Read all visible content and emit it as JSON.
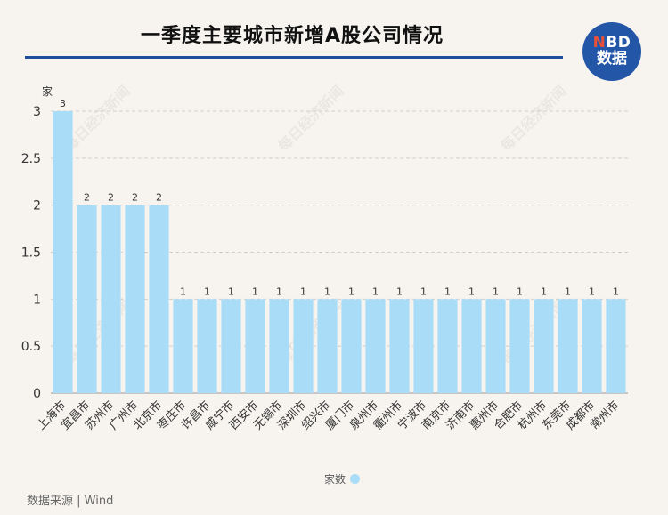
{
  "title": "一季度主要城市新增A股公司情况",
  "logo": {
    "line1_accent": "N",
    "line1_rest": "BD",
    "line2": "数据",
    "color": "#2456a8",
    "accent": "#e8503a"
  },
  "source": "数据来源 | Wind",
  "watermark": "每日经济新闻",
  "chart_data": {
    "type": "bar",
    "unit_label": "家",
    "legend": "家数",
    "bar_color": "#a9dcf7",
    "ylim": [
      0,
      3
    ],
    "yticks": [
      0,
      0.5,
      1,
      1.5,
      2,
      2.5,
      3
    ],
    "grid": "horizontal-dashed",
    "legend_position": "bottom-center",
    "categories": [
      "上海市",
      "宜昌市",
      "苏州市",
      "广州市",
      "北京市",
      "枣庄市",
      "许昌市",
      "咸宁市",
      "西安市",
      "无锡市",
      "深圳市",
      "绍兴市",
      "厦门市",
      "泉州市",
      "衢州市",
      "宁波市",
      "南京市",
      "济南市",
      "惠州市",
      "合肥市",
      "杭州市",
      "东莞市",
      "成都市",
      "常州市"
    ],
    "values": [
      3,
      2,
      2,
      2,
      2,
      1,
      1,
      1,
      1,
      1,
      1,
      1,
      1,
      1,
      1,
      1,
      1,
      1,
      1,
      1,
      1,
      1,
      1,
      1
    ]
  }
}
